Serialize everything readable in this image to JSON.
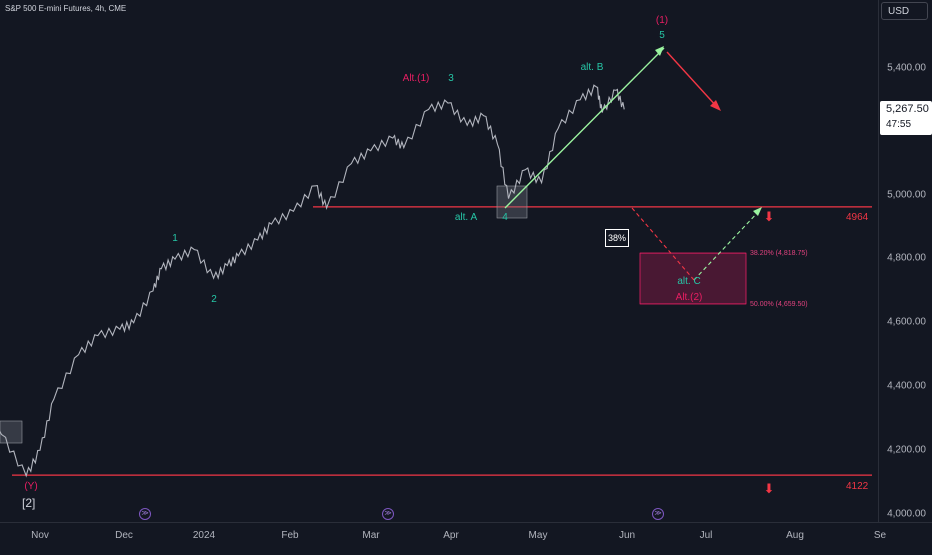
{
  "symbol": "S&P 500 E-mini Futures, 4h, CME",
  "currency": "USD",
  "last_price": "5,267.50",
  "countdown": "47:55",
  "colors": {
    "background": "#131722",
    "candle": "#b2b5be",
    "support_line": "#f23645",
    "wave_teal": "#26c6a6",
    "wave_pink": "#e91e63",
    "target_zone": "#5c1a3a",
    "impulse_line": "#9bf4a0"
  },
  "chart_data": {
    "type": "line",
    "title": "S&P 500 E-mini Futures, 4h, CME",
    "y_axis": {
      "min": 4000,
      "max": 5500,
      "ticks": [
        "4,000.00",
        "4,200.00",
        "4,400.00",
        "4,600.00",
        "4,800.00",
        "5,000.00",
        "5,400.00"
      ]
    },
    "x_axis": {
      "ticks": [
        "Nov",
        "Dec",
        "2024",
        "Feb",
        "Mar",
        "Apr",
        "May",
        "Jun",
        "Jul",
        "Aug",
        "Se"
      ]
    },
    "series": [
      {
        "x": [
          "2023-10-02",
          "2023-10-10",
          "2023-10-18",
          "2023-10-27",
          "2023-11-01",
          "2023-11-06",
          "2023-11-15",
          "2023-11-22",
          "2023-11-30",
          "2023-12-05",
          "2023-12-12",
          "2023-12-15",
          "2023-12-20",
          "2023-12-27",
          "2024-01-03",
          "2024-01-08",
          "2024-01-12",
          "2024-01-19",
          "2024-01-24",
          "2024-02-01",
          "2024-02-09",
          "2024-02-13",
          "2024-02-22",
          "2024-02-29",
          "2024-03-08",
          "2024-03-12",
          "2024-03-21",
          "2024-03-28",
          "2024-04-04",
          "2024-04-10",
          "2024-04-15",
          "2024-04-19",
          "2024-04-25",
          "2024-05-01",
          "2024-05-07",
          "2024-05-15",
          "2024-05-21",
          "2024-05-23",
          "2024-05-28",
          "2024-05-31"
        ],
        "values": [
          4330,
          4310,
          4250,
          4120,
          4200,
          4360,
          4500,
          4560,
          4580,
          4600,
          4700,
          4770,
          4800,
          4830,
          4740,
          4780,
          4810,
          4860,
          4910,
          4950,
          5030,
          4960,
          5100,
          5140,
          5180,
          5150,
          5270,
          5290,
          5220,
          5250,
          5160,
          4990,
          5080,
          5040,
          5210,
          5300,
          5340,
          5260,
          5330,
          5270
        ]
      }
    ],
    "levels": [
      {
        "value": 4964,
        "label": "4964"
      },
      {
        "value": 4122,
        "label": "4122"
      }
    ],
    "fib_retracements": [
      {
        "label": "38.20% (4,818.75)",
        "value": 4818.75
      },
      {
        "label": "50.00% (4,659.50)",
        "value": 4659.5
      }
    ],
    "target_zone": {
      "from": 4659.5,
      "to": 4818.75
    },
    "probability_label": "38%",
    "wave_labels": [
      {
        "text": "(Y)",
        "color": "pink"
      },
      {
        "text": "[2]",
        "color": "white"
      },
      {
        "text": "1",
        "color": "teal"
      },
      {
        "text": "2",
        "color": "teal"
      },
      {
        "text": "Alt.(1)",
        "color": "pink"
      },
      {
        "text": "3",
        "color": "teal"
      },
      {
        "text": "alt. A",
        "color": "teal"
      },
      {
        "text": "4",
        "color": "teal"
      },
      {
        "text": "alt. B",
        "color": "teal"
      },
      {
        "text": "(1)",
        "color": "pink"
      },
      {
        "text": "5",
        "color": "teal"
      },
      {
        "text": "alt. C",
        "color": "teal"
      },
      {
        "text": "Alt.(2)",
        "color": "pink"
      }
    ]
  }
}
